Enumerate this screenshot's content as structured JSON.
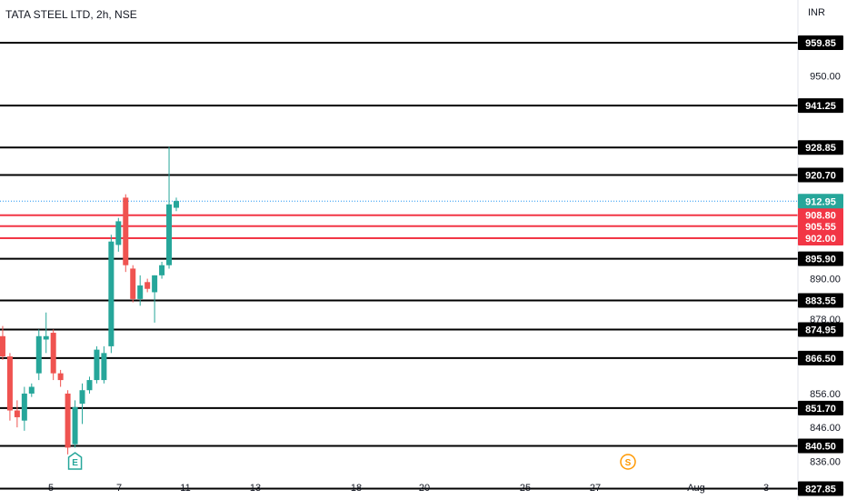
{
  "header": {
    "title": "TATA STEEL LTD, 2h, NSE",
    "currency": "INR"
  },
  "chart_data": {
    "type": "candlestick",
    "title": "TATA STEEL LTD, 2h, NSE",
    "currency": "INR",
    "ylim": [
      824.5,
      972.5
    ],
    "axis_ticks": [
      "950.00",
      "890.00",
      "878.00",
      "856.00",
      "846.00",
      "836.00"
    ],
    "x_ticks": [
      "5",
      "7",
      "11",
      "13",
      "18",
      "20",
      "25",
      "27",
      "Aug",
      "3"
    ],
    "current_price": 912.95,
    "levels": [
      {
        "value": 959.85,
        "label": "959.85",
        "color": "#000000"
      },
      {
        "value": 941.25,
        "label": "941.25",
        "color": "#000000"
      },
      {
        "value": 928.85,
        "label": "928.85",
        "color": "#000000"
      },
      {
        "value": 920.7,
        "label": "920.70",
        "color": "#000000"
      },
      {
        "value": 908.8,
        "label": "908.80",
        "color": "#f23645"
      },
      {
        "value": 905.55,
        "label": "905.55",
        "color": "#f23645"
      },
      {
        "value": 902.0,
        "label": "902.00",
        "color": "#f23645"
      },
      {
        "value": 895.9,
        "label": "895.90",
        "color": "#000000"
      },
      {
        "value": 883.55,
        "label": "883.55",
        "color": "#000000"
      },
      {
        "value": 874.95,
        "label": "874.95",
        "color": "#000000"
      },
      {
        "value": 866.5,
        "label": "866.50",
        "color": "#000000"
      },
      {
        "value": 851.7,
        "label": "851.70",
        "color": "#000000"
      },
      {
        "value": 840.5,
        "label": "840.50",
        "color": "#000000"
      },
      {
        "value": 827.85,
        "label": "827.85",
        "color": "#000000"
      }
    ],
    "current_label": "912.95",
    "candles": [
      {
        "o": 868,
        "h": 875,
        "l": 862,
        "c": 874
      },
      {
        "o": 873,
        "h": 876,
        "l": 866,
        "c": 867
      },
      {
        "o": 867,
        "h": 868,
        "l": 848,
        "c": 851
      },
      {
        "o": 851,
        "h": 854,
        "l": 846,
        "c": 849
      },
      {
        "o": 848,
        "h": 858,
        "l": 845,
        "c": 856
      },
      {
        "o": 856,
        "h": 859,
        "l": 855,
        "c": 858
      },
      {
        "o": 862,
        "h": 875,
        "l": 860,
        "c": 873
      },
      {
        "o": 872,
        "h": 880,
        "l": 868,
        "c": 873
      },
      {
        "o": 874,
        "h": 875,
        "l": 860,
        "c": 862
      },
      {
        "o": 862,
        "h": 863,
        "l": 858,
        "c": 860
      },
      {
        "o": 856,
        "h": 857,
        "l": 838,
        "c": 840
      },
      {
        "o": 841,
        "h": 854,
        "l": 840,
        "c": 852
      },
      {
        "o": 853,
        "h": 859,
        "l": 847,
        "c": 857
      },
      {
        "o": 857,
        "h": 861,
        "l": 856,
        "c": 860
      },
      {
        "o": 860,
        "h": 870,
        "l": 859,
        "c": 869
      },
      {
        "o": 860,
        "h": 870,
        "l": 859,
        "c": 868
      },
      {
        "o": 870,
        "h": 903,
        "l": 868,
        "c": 901
      },
      {
        "o": 900,
        "h": 908,
        "l": 898,
        "c": 907
      },
      {
        "o": 914,
        "h": 915,
        "l": 892,
        "c": 894
      },
      {
        "o": 893,
        "h": 894,
        "l": 883,
        "c": 884
      },
      {
        "o": 884,
        "h": 891,
        "l": 882,
        "c": 888
      },
      {
        "o": 889,
        "h": 890,
        "l": 886,
        "c": 887
      },
      {
        "o": 886,
        "h": 891,
        "l": 877,
        "c": 891
      },
      {
        "o": 891,
        "h": 895,
        "l": 890,
        "c": 894
      },
      {
        "o": 894,
        "h": 929,
        "l": 893,
        "c": 912
      },
      {
        "o": 911,
        "h": 914,
        "l": 910,
        "c": 913
      }
    ],
    "events": [
      {
        "label": "E",
        "candle": 11
      },
      {
        "label": "S",
        "date": "27"
      }
    ]
  }
}
